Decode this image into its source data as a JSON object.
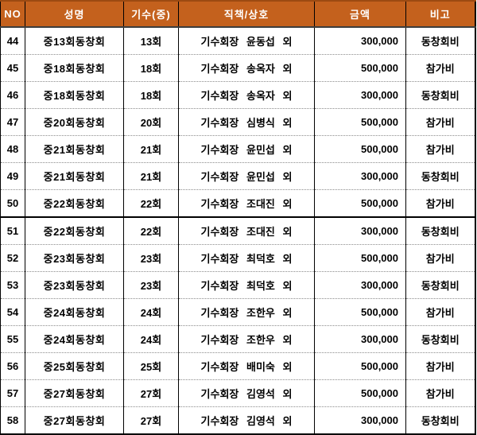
{
  "colors": {
    "header_bg": "#C4611D",
    "header_text": "#FFFFFF",
    "header_top": "#9C4A12",
    "header_rule": "#3D3D3D",
    "grid": "#000000",
    "divider": "#8C8C8C"
  },
  "table": {
    "columns": [
      {
        "key": "no",
        "label": "NO"
      },
      {
        "key": "name",
        "label": "성명"
      },
      {
        "key": "gisu",
        "label": "기수(중)"
      },
      {
        "key": "title",
        "label": "직책/상호"
      },
      {
        "key": "amount",
        "label": "금액"
      },
      {
        "key": "note",
        "label": "비고"
      }
    ],
    "page_break_before_no": "51",
    "rows": [
      {
        "no": "44",
        "name": "중13회동창회",
        "gisu": "13회",
        "title": "기수회장 윤동섭 외",
        "amount": "300,000",
        "note": "동창회비"
      },
      {
        "no": "45",
        "name": "중18회동창회",
        "gisu": "18회",
        "title": "기수회장 송옥자 외",
        "amount": "500,000",
        "note": "참가비"
      },
      {
        "no": "46",
        "name": "중18회동창회",
        "gisu": "18회",
        "title": "기수회장 송옥자 외",
        "amount": "300,000",
        "note": "동창회비"
      },
      {
        "no": "47",
        "name": "중20회동창회",
        "gisu": "20회",
        "title": "기수회장 심병식 외",
        "amount": "500,000",
        "note": "참가비"
      },
      {
        "no": "48",
        "name": "중21회동창회",
        "gisu": "21회",
        "title": "기수회장 윤민섭 외",
        "amount": "500,000",
        "note": "참가비"
      },
      {
        "no": "49",
        "name": "중21회동창회",
        "gisu": "21회",
        "title": "기수회장 윤민섭 외",
        "amount": "300,000",
        "note": "동창회비"
      },
      {
        "no": "50",
        "name": "중22회동창회",
        "gisu": "22회",
        "title": "기수회장 조대진 외",
        "amount": "500,000",
        "note": "참가비"
      },
      {
        "no": "51",
        "name": "중22회동창회",
        "gisu": "22회",
        "title": "기수회장 조대진 외",
        "amount": "300,000",
        "note": "동창회비"
      },
      {
        "no": "52",
        "name": "중23회동창회",
        "gisu": "23회",
        "title": "기수회장 최덕호 외",
        "amount": "500,000",
        "note": "참가비"
      },
      {
        "no": "53",
        "name": "중23회동창회",
        "gisu": "23회",
        "title": "기수회장 최덕호 외",
        "amount": "300,000",
        "note": "동창회비"
      },
      {
        "no": "54",
        "name": "중24회동창회",
        "gisu": "24회",
        "title": "기수회장 조한우 외",
        "amount": "500,000",
        "note": "참가비"
      },
      {
        "no": "55",
        "name": "중24회동창회",
        "gisu": "24회",
        "title": "기수회장 조한우 외",
        "amount": "300,000",
        "note": "동창회비"
      },
      {
        "no": "56",
        "name": "중25회동창회",
        "gisu": "25회",
        "title": "기수회장 배미숙 외",
        "amount": "500,000",
        "note": "참가비"
      },
      {
        "no": "57",
        "name": "중27회동창회",
        "gisu": "27회",
        "title": "기수회장 김영석 외",
        "amount": "500,000",
        "note": "참가비"
      },
      {
        "no": "58",
        "name": "중27회동창회",
        "gisu": "27회",
        "title": "기수회장 김영석 외",
        "amount": "300,000",
        "note": "동창회비"
      }
    ]
  }
}
